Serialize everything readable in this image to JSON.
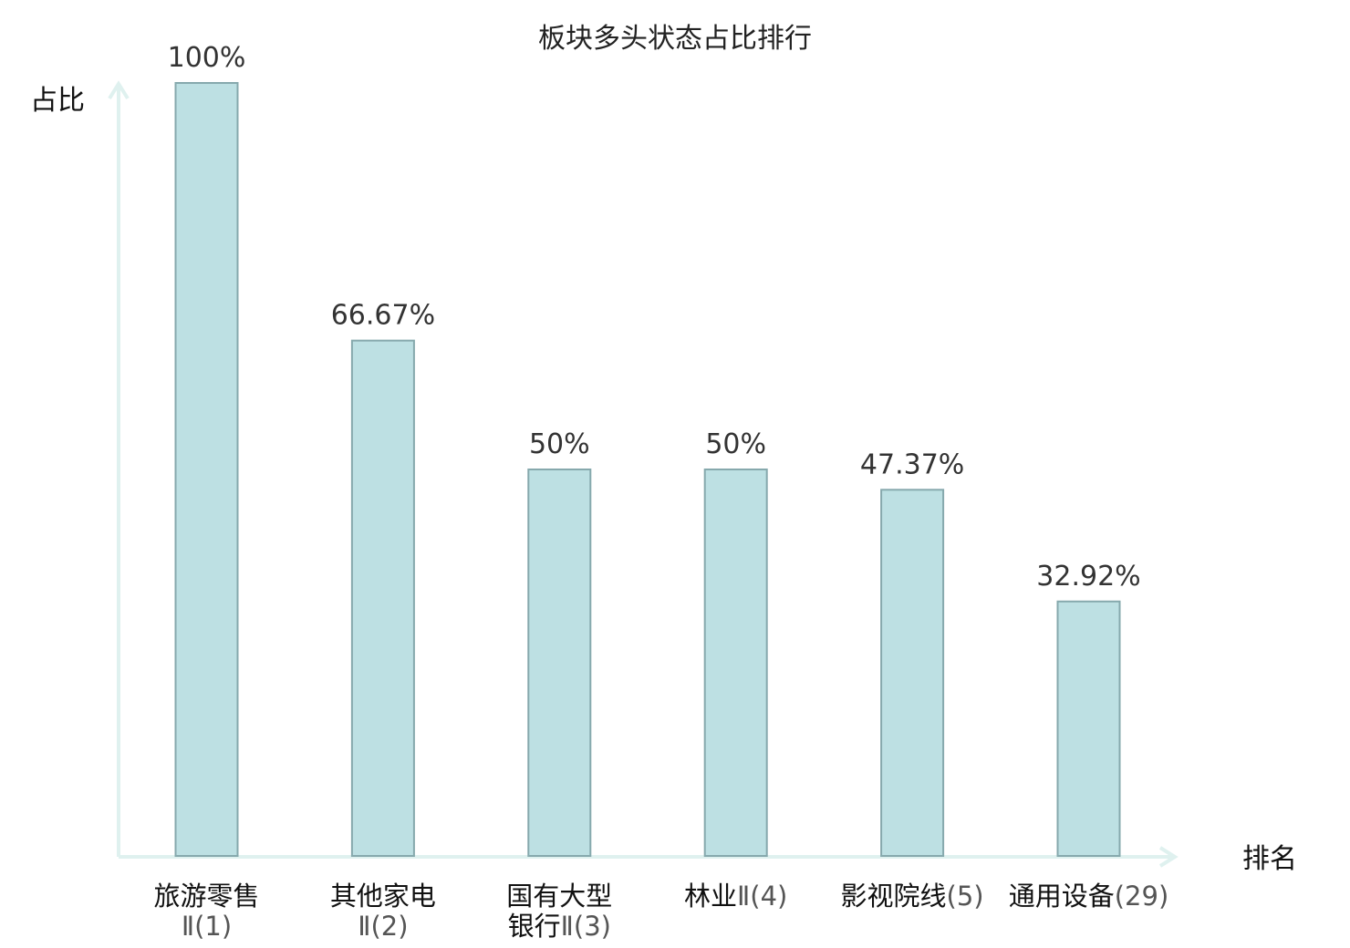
{
  "chart_data": {
    "type": "bar",
    "title": "板块多头状态占比排行",
    "ylabel": "占比",
    "xlabel": "排名",
    "ylim": [
      0,
      100
    ],
    "grid": false,
    "categories": [
      {
        "lines": [
          {
            "name": "旅游零售",
            "rank": ""
          },
          {
            "name": "",
            "rank": "Ⅱ(1)"
          }
        ],
        "highlight": false
      },
      {
        "lines": [
          {
            "name": "其他家电",
            "rank": ""
          },
          {
            "name": "",
            "rank": "Ⅱ(2)"
          }
        ],
        "highlight": false
      },
      {
        "lines": [
          {
            "name": "国有大型",
            "rank": ""
          },
          {
            "name": "银行",
            "rank": "Ⅱ(3)"
          }
        ],
        "highlight": false
      },
      {
        "lines": [
          {
            "name": "林业",
            "rank": "Ⅱ(4)"
          }
        ],
        "highlight": false
      },
      {
        "lines": [
          {
            "name": "影视院线",
            "rank": "(5)"
          }
        ],
        "highlight": false
      },
      {
        "lines": [
          {
            "name": "通用设备",
            "rank": "(29)"
          }
        ],
        "highlight": true
      }
    ],
    "values": [
      100,
      66.67,
      50,
      50,
      47.37,
      32.92
    ],
    "value_labels": [
      "100%",
      "66.67%",
      "50%",
      "50%",
      "47.37%",
      "32.92%"
    ],
    "colors": {
      "bar_fill": "#bde0e3",
      "bar_stroke": "#86a9ad",
      "axis": "#dff1ef",
      "highlight": "#e0242b"
    }
  }
}
